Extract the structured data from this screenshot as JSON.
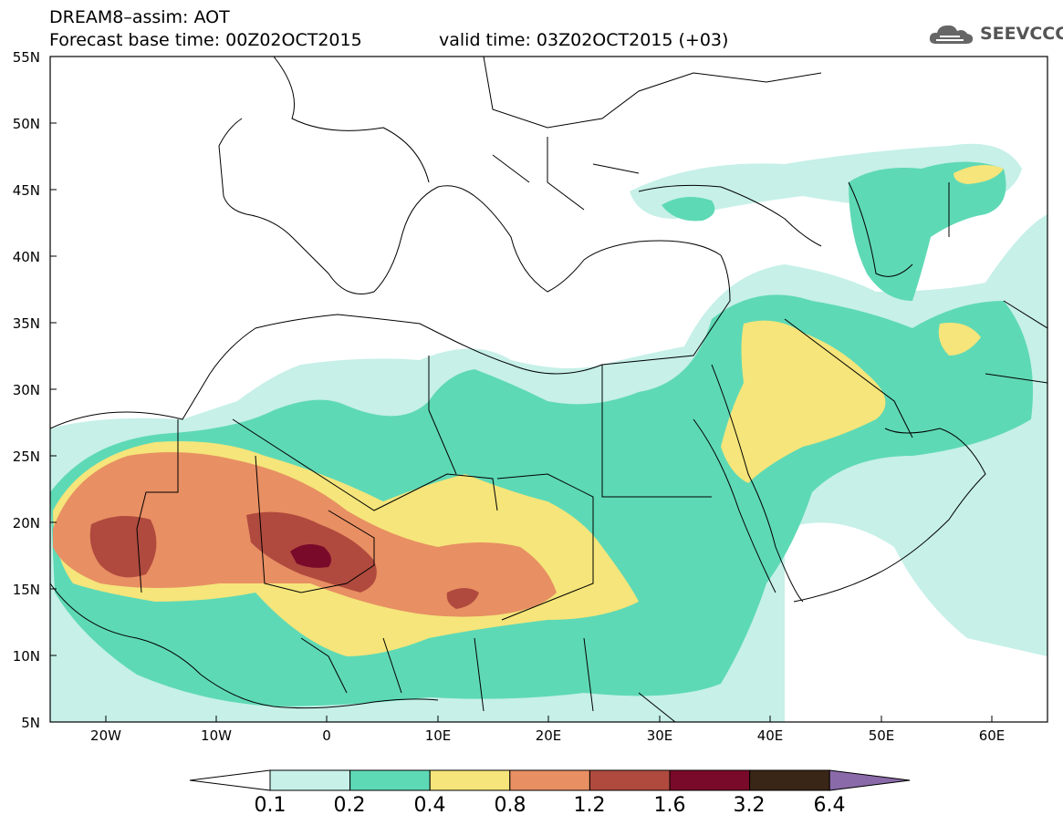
{
  "header": {
    "line1": "DREAM8–assim: AOT",
    "line2": "Forecast base time: 00Z02OCT2015",
    "valid": "valid time: 03Z02OCT2015 (+03)",
    "logo_text": "SEEVCCC",
    "logo_icon": "cloud-icon"
  },
  "map": {
    "lat_labels": [
      "55N",
      "50N",
      "45N",
      "40N",
      "35N",
      "30N",
      "25N",
      "20N",
      "15N",
      "10N",
      "5N"
    ],
    "lon_labels": [
      "20W",
      "10W",
      "0",
      "10E",
      "20E",
      "30E",
      "40E",
      "50E",
      "60E"
    ],
    "extent": {
      "lon": [
        -25,
        65
      ],
      "lat": [
        5,
        55
      ]
    }
  },
  "colorbar": {
    "labels": [
      "0.1",
      "0.2",
      "0.4",
      "0.8",
      "1.2",
      "1.6",
      "3.2",
      "6.4"
    ],
    "colors": [
      "#ffffff",
      "#c6f0e8",
      "#5ed9b5",
      "#f5e57a",
      "#e88f63",
      "#b04a3e",
      "#7a0a2a",
      "#3a2616",
      "#8b6aa9"
    ]
  }
}
